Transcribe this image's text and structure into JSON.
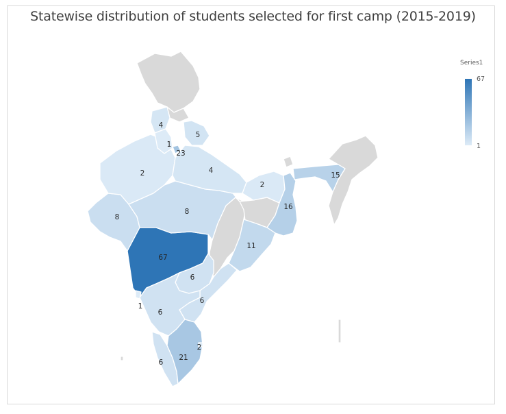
{
  "chart_data": {
    "type": "choropleth-map",
    "title": "Statewise distribution of students selected for first camp (2015-2019)",
    "legend": {
      "series_name": "Series1",
      "max": 67,
      "min": 1,
      "placement": "right",
      "color_low": "#ddebf7",
      "color_high": "#2e75b6"
    },
    "no_data_color": "#d9d9d9",
    "regions": [
      {
        "name": "Maharashtra",
        "value": 67
      },
      {
        "name": "Delhi",
        "value": 23
      },
      {
        "name": "Tamil Nadu",
        "value": 21
      },
      {
        "name": "West Bengal",
        "value": 16
      },
      {
        "name": "Assam",
        "value": 15
      },
      {
        "name": "Odisha",
        "value": 11
      },
      {
        "name": "Gujarat",
        "value": 8
      },
      {
        "name": "Madhya Pradesh",
        "value": 8
      },
      {
        "name": "Telangana",
        "value": 6
      },
      {
        "name": "Andhra Pradesh",
        "value": 6
      },
      {
        "name": "Karnataka",
        "value": 6
      },
      {
        "name": "Kerala",
        "value": 6
      },
      {
        "name": "Uttarakhand",
        "value": 5
      },
      {
        "name": "Punjab",
        "value": 4
      },
      {
        "name": "Uttar Pradesh",
        "value": 4
      },
      {
        "name": "Rajasthan",
        "value": 2
      },
      {
        "name": "Bihar",
        "value": 2
      },
      {
        "name": "Puducherry",
        "value": 2
      },
      {
        "name": "Haryana",
        "value": 1
      },
      {
        "name": "Goa",
        "value": 1
      }
    ]
  }
}
